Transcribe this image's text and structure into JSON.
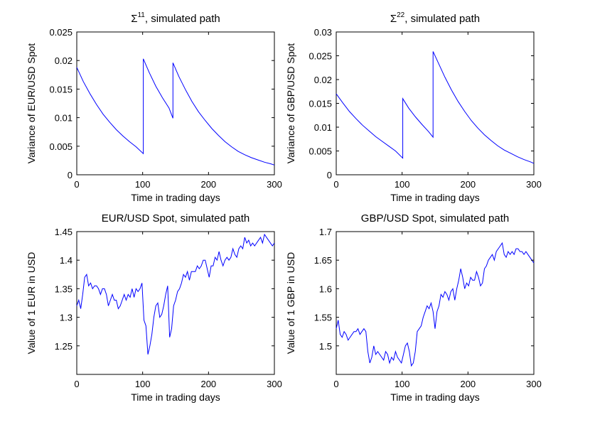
{
  "chart_data": [
    {
      "type": "line",
      "title": "Σ",
      "title_superscript": "11",
      "title_rest": ", simulated path",
      "xlabel": "Time in trading days",
      "ylabel": "Variance of EUR/USD Spot",
      "xlim": [
        0,
        300
      ],
      "ylim": [
        0,
        0.025
      ],
      "xticks": [
        "0",
        "100",
        "200",
        "300"
      ],
      "yticks": [
        "0",
        "0.005",
        "0.01",
        "0.015",
        "0.02",
        "0.025"
      ],
      "xtick_values": [
        0,
        100,
        200,
        300
      ],
      "ytick_values": [
        0,
        0.005,
        0.01,
        0.015,
        0.02,
        0.025
      ],
      "series": [
        {
          "name": "Sigma11",
          "color": "#0000ff",
          "x": [
            0,
            10,
            20,
            30,
            40,
            50,
            60,
            70,
            80,
            90,
            101,
            101,
            110,
            120,
            130,
            140,
            146,
            146,
            155,
            165,
            175,
            185,
            195,
            205,
            215,
            225,
            235,
            245,
            255,
            265,
            275,
            285,
            295,
            300
          ],
          "values": [
            0.0188,
            0.0163,
            0.0142,
            0.0123,
            0.0106,
            0.0092,
            0.0079,
            0.0068,
            0.0058,
            0.0049,
            0.0037,
            0.0203,
            0.0179,
            0.0155,
            0.0135,
            0.0117,
            0.0099,
            0.0196,
            0.0172,
            0.0149,
            0.0128,
            0.011,
            0.0095,
            0.0081,
            0.0069,
            0.0058,
            0.0049,
            0.0041,
            0.0035,
            0.003,
            0.0026,
            0.0022,
            0.0019,
            0.0017
          ]
        }
      ]
    },
    {
      "type": "line",
      "title": "Σ",
      "title_superscript": "22",
      "title_rest": ", simulated path",
      "xlabel": "Time in trading days",
      "ylabel": "Variance of GBP/USD Spot",
      "xlim": [
        0,
        300
      ],
      "ylim": [
        0,
        0.03
      ],
      "xticks": [
        "0",
        "100",
        "200",
        "300"
      ],
      "yticks": [
        "0",
        "0.005",
        "0.01",
        "0.015",
        "0.02",
        "0.025",
        "0.03"
      ],
      "xtick_values": [
        0,
        100,
        200,
        300
      ],
      "ytick_values": [
        0,
        0.005,
        0.01,
        0.015,
        0.02,
        0.025,
        0.03
      ],
      "series": [
        {
          "name": "Sigma22",
          "color": "#0000ff",
          "x": [
            0,
            10,
            20,
            30,
            40,
            50,
            60,
            70,
            80,
            90,
            101,
            101,
            110,
            120,
            130,
            140,
            147,
            147,
            155,
            165,
            175,
            185,
            195,
            205,
            215,
            225,
            235,
            245,
            255,
            265,
            275,
            285,
            295,
            300
          ],
          "values": [
            0.017,
            0.0151,
            0.0133,
            0.0118,
            0.0104,
            0.0092,
            0.008,
            0.007,
            0.006,
            0.005,
            0.0035,
            0.016,
            0.014,
            0.0122,
            0.0106,
            0.0091,
            0.0079,
            0.0259,
            0.0235,
            0.0205,
            0.0178,
            0.0154,
            0.0133,
            0.0114,
            0.0098,
            0.0084,
            0.0072,
            0.0061,
            0.0052,
            0.0045,
            0.0038,
            0.0032,
            0.0027,
            0.0024
          ]
        }
      ]
    },
    {
      "type": "line",
      "title": "EUR/USD Spot, simulated path",
      "xlabel": "Time in trading days",
      "ylabel": "Value of 1 EUR in USD",
      "xlim": [
        0,
        300
      ],
      "ylim": [
        1.2,
        1.45
      ],
      "xticks": [
        "0",
        "100",
        "200",
        "300"
      ],
      "yticks": [
        "1.25",
        "1.3",
        "1.35",
        "1.4",
        "1.45"
      ],
      "xtick_values": [
        0,
        100,
        200,
        300
      ],
      "ytick_values": [
        1.25,
        1.3,
        1.35,
        1.4,
        1.45
      ],
      "series": [
        {
          "name": "EURUSD",
          "color": "#0000ff",
          "x": [
            0,
            3,
            6,
            9,
            12,
            15,
            18,
            21,
            24,
            27,
            30,
            33,
            36,
            39,
            42,
            45,
            48,
            51,
            54,
            57,
            60,
            63,
            66,
            69,
            72,
            75,
            78,
            81,
            84,
            87,
            90,
            93,
            96,
            99,
            102,
            105,
            108,
            111,
            114,
            117,
            120,
            123,
            126,
            129,
            132,
            135,
            138,
            141,
            144,
            147,
            150,
            153,
            156,
            159,
            162,
            165,
            168,
            171,
            174,
            177,
            180,
            183,
            186,
            189,
            192,
            195,
            198,
            201,
            204,
            207,
            210,
            213,
            216,
            219,
            222,
            225,
            228,
            231,
            234,
            237,
            240,
            243,
            246,
            249,
            252,
            255,
            258,
            261,
            264,
            267,
            270,
            273,
            276,
            279,
            282,
            285,
            288,
            291,
            294,
            297,
            300
          ],
          "values": [
            1.32,
            1.33,
            1.315,
            1.34,
            1.37,
            1.375,
            1.355,
            1.36,
            1.35,
            1.355,
            1.355,
            1.35,
            1.34,
            1.35,
            1.35,
            1.34,
            1.32,
            1.33,
            1.34,
            1.33,
            1.33,
            1.315,
            1.32,
            1.33,
            1.34,
            1.33,
            1.34,
            1.335,
            1.35,
            1.335,
            1.35,
            1.345,
            1.35,
            1.36,
            1.295,
            1.285,
            1.235,
            1.25,
            1.27,
            1.3,
            1.32,
            1.325,
            1.3,
            1.305,
            1.32,
            1.34,
            1.355,
            1.265,
            1.28,
            1.32,
            1.33,
            1.345,
            1.35,
            1.36,
            1.375,
            1.37,
            1.38,
            1.365,
            1.38,
            1.38,
            1.38,
            1.39,
            1.385,
            1.39,
            1.4,
            1.4,
            1.385,
            1.37,
            1.39,
            1.39,
            1.405,
            1.4,
            1.415,
            1.4,
            1.39,
            1.4,
            1.405,
            1.4,
            1.405,
            1.42,
            1.41,
            1.405,
            1.42,
            1.425,
            1.42,
            1.44,
            1.43,
            1.435,
            1.425,
            1.43,
            1.425,
            1.43,
            1.435,
            1.44,
            1.43,
            1.445,
            1.44,
            1.435,
            1.43,
            1.425,
            1.43
          ]
        }
      ]
    },
    {
      "type": "line",
      "title": "GBP/USD Spot, simulated path",
      "xlabel": "Time in trading days",
      "ylabel": "Value of 1 GBP in USD",
      "xlim": [
        0,
        300
      ],
      "ylim": [
        1.45,
        1.7
      ],
      "xticks": [
        "0",
        "100",
        "200",
        "300"
      ],
      "yticks": [
        "1.5",
        "1.55",
        "1.6",
        "1.65",
        "1.7"
      ],
      "xtick_values": [
        0,
        100,
        200,
        300
      ],
      "ytick_values": [
        1.5,
        1.55,
        1.6,
        1.65,
        1.7
      ],
      "series": [
        {
          "name": "GBPUSD",
          "color": "#0000ff",
          "x": [
            0,
            3,
            6,
            9,
            12,
            15,
            18,
            21,
            24,
            27,
            30,
            33,
            36,
            39,
            42,
            45,
            48,
            51,
            54,
            57,
            60,
            63,
            66,
            69,
            72,
            75,
            78,
            81,
            84,
            87,
            90,
            93,
            96,
            99,
            102,
            105,
            108,
            111,
            114,
            117,
            120,
            123,
            126,
            129,
            132,
            135,
            138,
            141,
            144,
            147,
            150,
            153,
            156,
            159,
            162,
            165,
            168,
            171,
            174,
            177,
            180,
            183,
            186,
            189,
            192,
            195,
            198,
            201,
            204,
            207,
            210,
            213,
            216,
            219,
            222,
            225,
            228,
            231,
            234,
            237,
            240,
            243,
            246,
            249,
            252,
            255,
            258,
            261,
            264,
            267,
            270,
            273,
            276,
            279,
            282,
            285,
            288,
            291,
            294,
            297,
            300
          ],
          "values": [
            1.53,
            1.545,
            1.52,
            1.515,
            1.525,
            1.52,
            1.51,
            1.515,
            1.52,
            1.525,
            1.525,
            1.53,
            1.52,
            1.525,
            1.53,
            1.525,
            1.49,
            1.47,
            1.48,
            1.5,
            1.485,
            1.49,
            1.485,
            1.48,
            1.475,
            1.49,
            1.485,
            1.47,
            1.48,
            1.475,
            1.49,
            1.48,
            1.475,
            1.47,
            1.485,
            1.5,
            1.505,
            1.49,
            1.465,
            1.47,
            1.49,
            1.525,
            1.53,
            1.535,
            1.55,
            1.56,
            1.57,
            1.565,
            1.575,
            1.56,
            1.53,
            1.56,
            1.57,
            1.59,
            1.585,
            1.595,
            1.59,
            1.58,
            1.595,
            1.6,
            1.58,
            1.6,
            1.615,
            1.635,
            1.62,
            1.6,
            1.61,
            1.605,
            1.62,
            1.615,
            1.615,
            1.63,
            1.62,
            1.605,
            1.61,
            1.635,
            1.64,
            1.65,
            1.655,
            1.66,
            1.65,
            1.665,
            1.67,
            1.675,
            1.68,
            1.66,
            1.655,
            1.665,
            1.66,
            1.665,
            1.66,
            1.67,
            1.67,
            1.665,
            1.665,
            1.66,
            1.665,
            1.66,
            1.655,
            1.65,
            1.645
          ]
        }
      ]
    }
  ]
}
